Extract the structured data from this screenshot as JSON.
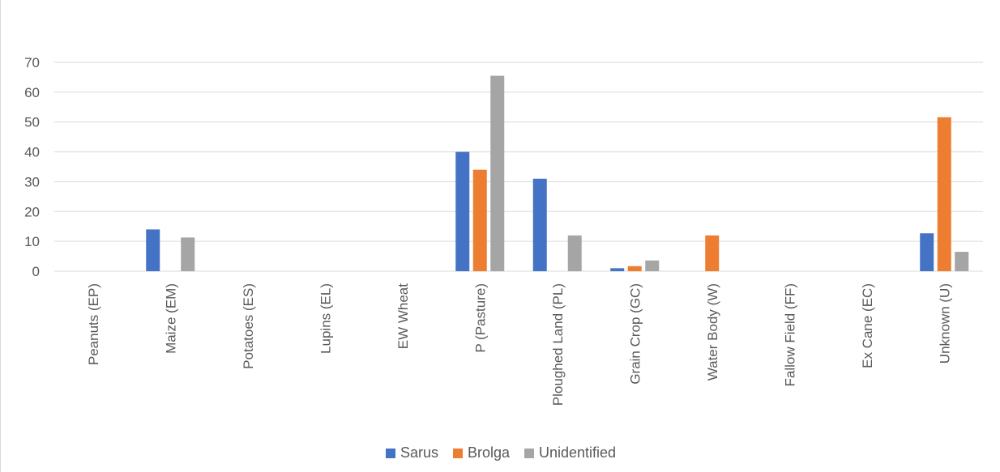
{
  "chart_data": {
    "type": "bar",
    "title": "",
    "xlabel": "",
    "ylabel": "",
    "ylim": [
      0,
      70
    ],
    "yticks": [
      0,
      10,
      20,
      30,
      40,
      50,
      60,
      70
    ],
    "grid": true,
    "legend_position": "bottom",
    "categories": [
      "Peanuts (EP)",
      "Maize (EM)",
      "Potatoes (ES)",
      "Lupins (EL)",
      "EW Wheat",
      "P (Pasture)",
      "Ploughed Land (PL)",
      "Grain Crop (GC)",
      "Water Body (W)",
      "Fallow Field (FF)",
      "Ex Cane (EC)",
      "Unknown (U)"
    ],
    "series": [
      {
        "name": "Sarus",
        "color": "#4472C4",
        "values": [
          0,
          14,
          0,
          0,
          0,
          40,
          31,
          1,
          0,
          0,
          0,
          12.7
        ]
      },
      {
        "name": "Brolga",
        "color": "#ED7D31",
        "values": [
          0,
          0,
          0,
          0,
          0,
          34,
          0,
          1.7,
          12,
          0,
          0,
          51.6
        ]
      },
      {
        "name": "Unidentified",
        "color": "#A5A5A5",
        "values": [
          0,
          11.3,
          0,
          0,
          0,
          65.5,
          12,
          3.6,
          0,
          0,
          0,
          6.5
        ]
      }
    ]
  }
}
